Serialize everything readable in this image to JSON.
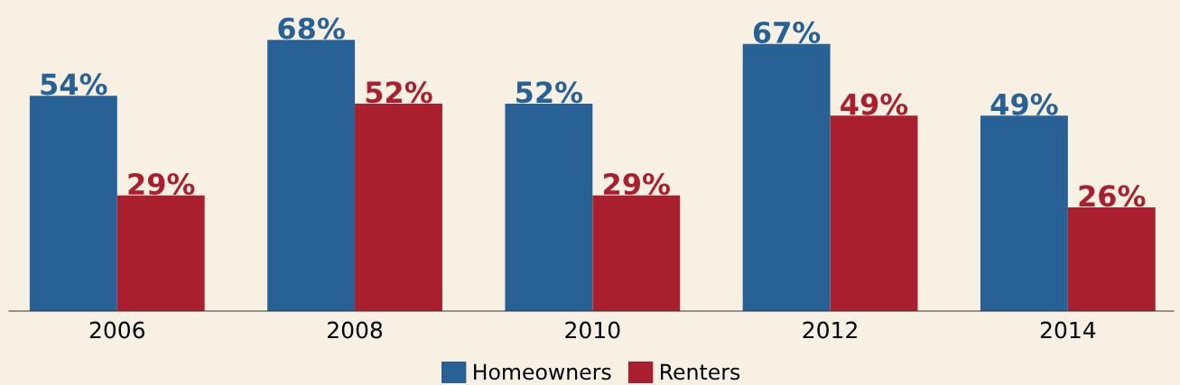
{
  "chart_data": {
    "type": "bar",
    "categories": [
      "2006",
      "2008",
      "2010",
      "2012",
      "2014"
    ],
    "series": [
      {
        "name": "Homeowners",
        "color": "#276196",
        "values": [
          54,
          68,
          52,
          67,
          49
        ],
        "value_labels": [
          "54%",
          "68%",
          "52%",
          "67%",
          "49%"
        ]
      },
      {
        "name": "Renters",
        "color": "#a91f2e",
        "values": [
          29,
          52,
          29,
          49,
          26
        ],
        "value_labels": [
          "29%",
          "52%",
          "29%",
          "49%",
          "26%"
        ]
      }
    ],
    "ylim": [
      0,
      78
    ],
    "tick_labels": "x",
    "grid": false,
    "legend": "bottom"
  }
}
